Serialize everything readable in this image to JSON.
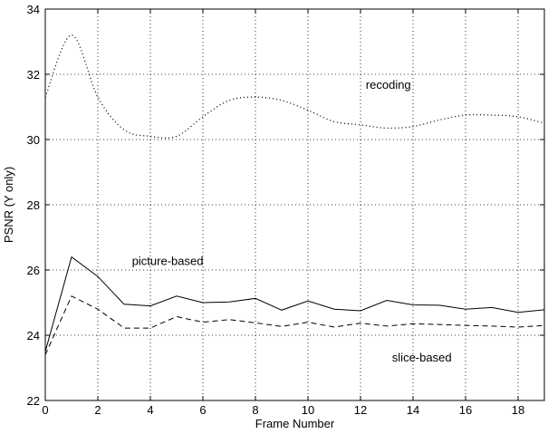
{
  "chart_data": {
    "type": "line",
    "title": "",
    "xlabel": "Frame Number",
    "ylabel": "PSNR  (Y only)",
    "xlim": [
      0,
      19
    ],
    "ylim": [
      22,
      34
    ],
    "xticks": [
      0,
      2,
      4,
      6,
      8,
      10,
      12,
      14,
      16,
      18
    ],
    "yticks": [
      22,
      24,
      26,
      28,
      30,
      32,
      34
    ],
    "grid": true,
    "legend": "none",
    "x": [
      0,
      1,
      2,
      3,
      4,
      5,
      6,
      7,
      8,
      9,
      10,
      11,
      12,
      13,
      14,
      15,
      16,
      17,
      18,
      19
    ],
    "series": [
      {
        "name": "recoding",
        "style": "dotted",
        "smooth": true,
        "values": [
          31.3,
          33.2,
          31.3,
          30.3,
          30.1,
          30.1,
          30.7,
          31.2,
          31.3,
          31.2,
          30.9,
          30.55,
          30.45,
          30.35,
          30.4,
          30.6,
          30.75,
          30.75,
          30.7,
          30.5
        ]
      },
      {
        "name": "picture-based",
        "style": "solid",
        "smooth": false,
        "values": [
          23.5,
          26.4,
          25.8,
          24.95,
          24.9,
          25.2,
          25.0,
          25.02,
          25.13,
          24.77,
          25.05,
          24.8,
          24.75,
          25.07,
          24.93,
          24.92,
          24.8,
          24.85,
          24.7,
          24.78
        ]
      },
      {
        "name": "slice-based",
        "style": "dashed",
        "smooth": false,
        "values": [
          23.4,
          25.2,
          24.8,
          24.22,
          24.22,
          24.57,
          24.4,
          24.48,
          24.38,
          24.27,
          24.4,
          24.25,
          24.37,
          24.28,
          24.35,
          24.33,
          24.3,
          24.28,
          24.25,
          24.3
        ]
      }
    ],
    "annotations": [
      {
        "text": "recoding",
        "x": 12.2,
        "y": 31.55
      },
      {
        "text": "picture-based",
        "x": 3.3,
        "y": 26.15
      },
      {
        "text": "slice-based",
        "x": 13.2,
        "y": 23.2
      }
    ]
  }
}
